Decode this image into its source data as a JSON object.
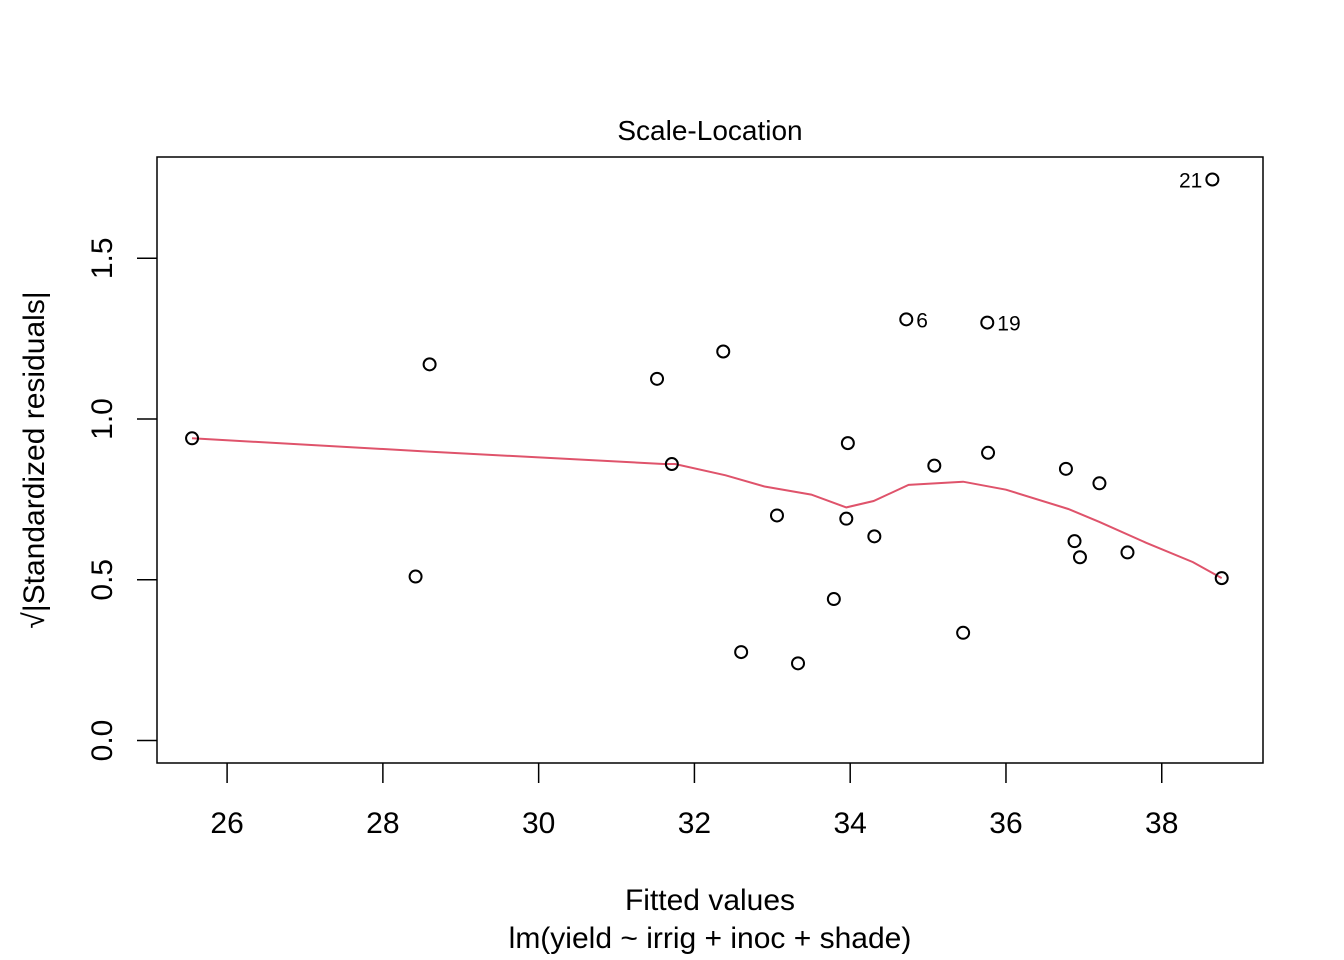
{
  "chart_data": {
    "type": "scatter",
    "title": "Scale-Location",
    "xlabel": "Fitted values",
    "xlabel_sub": "lm(yield ~ irrig + inoc + shade)",
    "ylabel": "√|Standardized residuals|",
    "xlim": [
      25.1,
      39.3
    ],
    "ylim": [
      -0.07,
      1.815
    ],
    "xticks": [
      {
        "value": 26,
        "label": "26"
      },
      {
        "value": 28,
        "label": "28"
      },
      {
        "value": 30,
        "label": "30"
      },
      {
        "value": 32,
        "label": "32"
      },
      {
        "value": 34,
        "label": "34"
      },
      {
        "value": 36,
        "label": "36"
      },
      {
        "value": 38,
        "label": "38"
      }
    ],
    "yticks": [
      {
        "value": 0.0,
        "label": "0.0"
      },
      {
        "value": 0.5,
        "label": "0.5"
      },
      {
        "value": 1.0,
        "label": "1.0"
      },
      {
        "value": 1.5,
        "label": "1.5"
      }
    ],
    "grid": false,
    "points": [
      {
        "x": 25.55,
        "y": 0.94
      },
      {
        "x": 28.42,
        "y": 0.51
      },
      {
        "x": 28.6,
        "y": 1.17
      },
      {
        "x": 31.52,
        "y": 1.125
      },
      {
        "x": 31.71,
        "y": 0.86
      },
      {
        "x": 32.37,
        "y": 1.21
      },
      {
        "x": 32.6,
        "y": 0.275
      },
      {
        "x": 33.06,
        "y": 0.7
      },
      {
        "x": 33.33,
        "y": 0.24
      },
      {
        "x": 33.79,
        "y": 0.44
      },
      {
        "x": 33.95,
        "y": 0.69
      },
      {
        "x": 33.97,
        "y": 0.925
      },
      {
        "x": 34.31,
        "y": 0.635
      },
      {
        "x": 34.72,
        "y": 1.31,
        "label": "6"
      },
      {
        "x": 35.08,
        "y": 0.855
      },
      {
        "x": 35.45,
        "y": 0.335
      },
      {
        "x": 35.76,
        "y": 1.3,
        "label": "19"
      },
      {
        "x": 35.77,
        "y": 0.895
      },
      {
        "x": 36.77,
        "y": 0.845
      },
      {
        "x": 36.88,
        "y": 0.62
      },
      {
        "x": 36.95,
        "y": 0.57
      },
      {
        "x": 37.2,
        "y": 0.8
      },
      {
        "x": 37.56,
        "y": 0.585
      },
      {
        "x": 38.65,
        "y": 1.745,
        "label": "21"
      },
      {
        "x": 38.77,
        "y": 0.505
      }
    ],
    "smoother": {
      "color": "#DF536B",
      "x": [
        25.55,
        28.5,
        31.6,
        31.75,
        32.4,
        32.9,
        33.5,
        33.95,
        34.3,
        34.75,
        35.45,
        36,
        36.8,
        37.2,
        37.8,
        38.4,
        38.77
      ],
      "y": [
        0.94,
        0.9,
        0.86,
        0.86,
        0.825,
        0.79,
        0.765,
        0.725,
        0.745,
        0.795,
        0.805,
        0.78,
        0.72,
        0.68,
        0.615,
        0.555,
        0.505
      ]
    }
  }
}
